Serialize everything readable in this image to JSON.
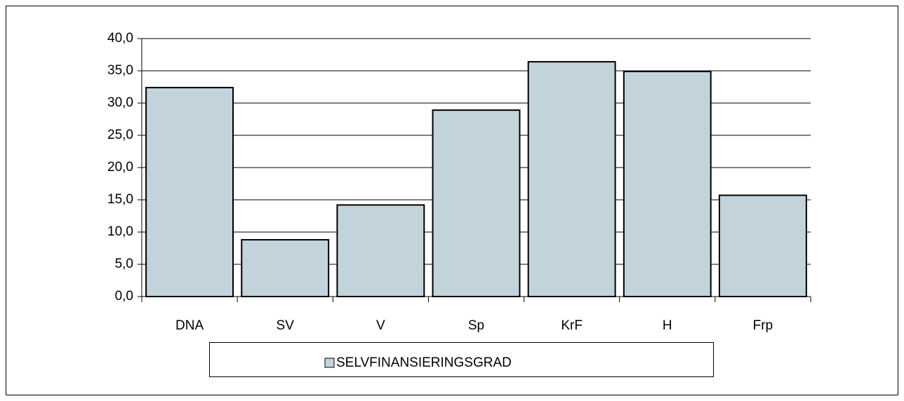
{
  "chart_data": {
    "type": "bar",
    "categories": [
      "DNA",
      "SV",
      "V",
      "Sp",
      "KrF",
      "H",
      "Frp"
    ],
    "series": [
      {
        "name": "SELVFINANSIERINGSGRAD",
        "color": "#c3d3db",
        "values": [
          32.4,
          8.8,
          14.2,
          28.9,
          36.4,
          34.9,
          15.7
        ]
      }
    ],
    "ylim": [
      0,
      40
    ],
    "yticks": [
      {
        "value": 0,
        "label": "0,0"
      },
      {
        "value": 5,
        "label": "5,0"
      },
      {
        "value": 10,
        "label": "10,0"
      },
      {
        "value": 15,
        "label": "15,0"
      },
      {
        "value": 20,
        "label": "20,0"
      },
      {
        "value": 25,
        "label": "25,0"
      },
      {
        "value": 30,
        "label": "30,0"
      },
      {
        "value": 35,
        "label": "35,0"
      },
      {
        "value": 40,
        "label": "40,0"
      }
    ],
    "grid": true,
    "legend": "bottom"
  }
}
